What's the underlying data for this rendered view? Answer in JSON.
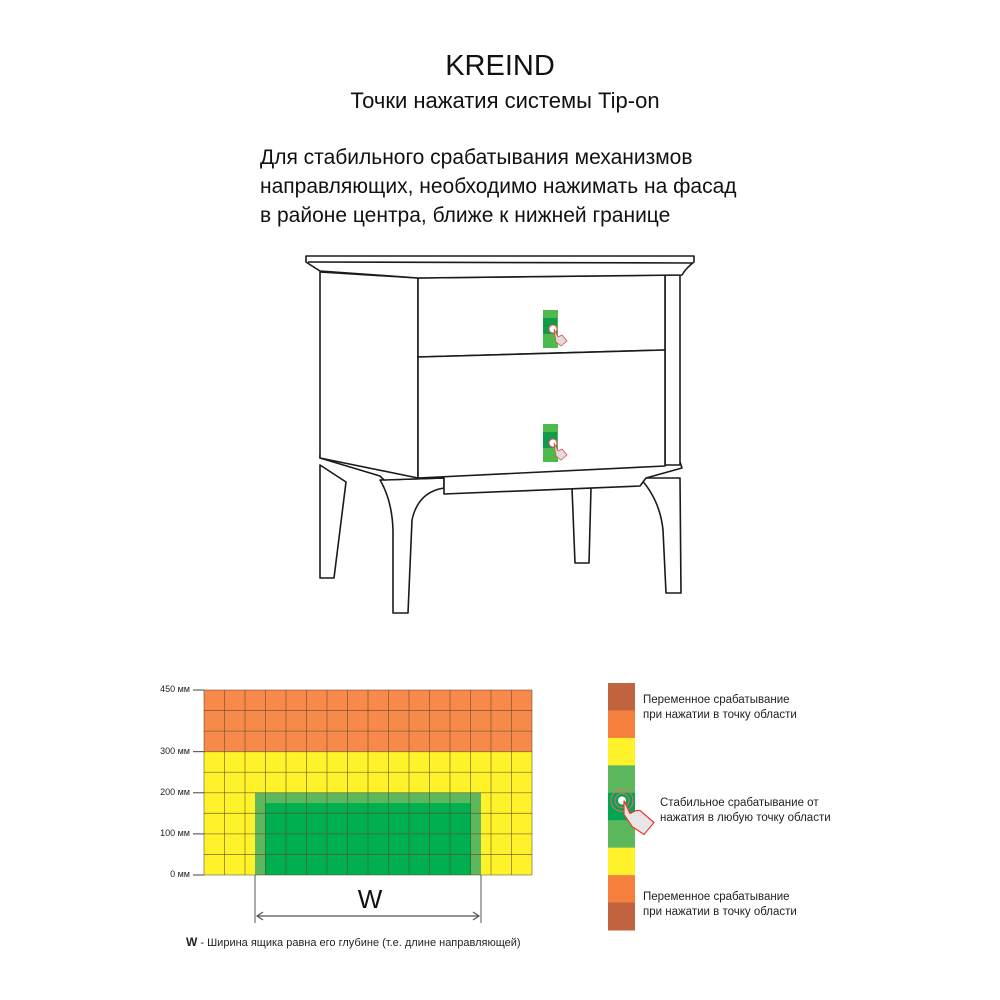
{
  "header": {
    "brand": "KREIND",
    "subtitle": "Точки нажатия системы Tip-on"
  },
  "instructions": [
    "Для стабильного срабатывания механизмов",
    "направляющих, необходимо нажимать на фасад",
    "в районе центра, ближе к нижней границе"
  ],
  "diagram": {
    "y_ticks": [
      "450 мм",
      "300 мм",
      "200 мм",
      "100 мм",
      "0 мм"
    ],
    "width_symbol": "W",
    "caption_symbol": "W",
    "caption_text": " - Ширина ящика равна его глубине (т.е. длине направляющей)",
    "zones": [
      {
        "from_mm": 300,
        "to_mm": 450,
        "color": "#f7894a"
      },
      {
        "from_mm": 0,
        "to_mm": 300,
        "color": "#fff22a"
      }
    ],
    "green_outer_color": "#5cb85c",
    "green_inner_color": "#00b050"
  },
  "legend": {
    "segments": [
      "#c0633f",
      "#f57f3c",
      "#fff22a",
      "#5cb85c",
      "#00a651",
      "#5cb85c",
      "#fff22a",
      "#f57f3c",
      "#c0633f"
    ],
    "variable_top": [
      "Переменное срабатывание",
      "при нажатии в точку области"
    ],
    "stable": [
      "Стабильное срабатывание от",
      "нажатия в любую точку области"
    ],
    "variable_bottom": [
      "Переменное срабатывание",
      "при нажатии в точку области"
    ],
    "icon": "hand-press-icon"
  }
}
